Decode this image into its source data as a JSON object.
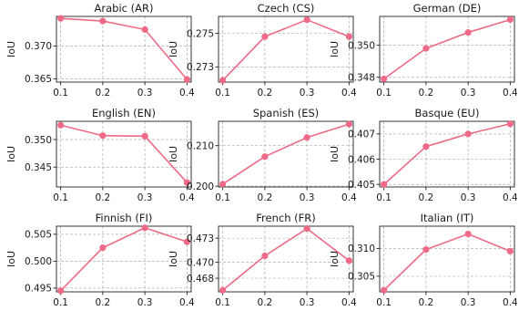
{
  "colors": {
    "series": "#ee6a86"
  },
  "chart_data": [
    {
      "type": "line",
      "title": "Arabic (AR)",
      "ylabel": "IoU",
      "x": [
        0.1,
        0.2,
        0.3,
        0.4
      ],
      "xticks": [
        "0.1",
        "0.2",
        "0.3",
        "0.4"
      ],
      "ylim": [
        0.3645,
        0.3745
      ],
      "yticks": [
        0.365,
        0.37
      ],
      "ytick_labels": [
        "0.365",
        "0.370"
      ],
      "series": [
        {
          "values": [
            0.3742,
            0.3738,
            0.3725,
            0.3649
          ]
        }
      ]
    },
    {
      "type": "line",
      "title": "Czech (CS)",
      "ylabel": "IoU",
      "x": [
        0.1,
        0.2,
        0.3,
        0.4
      ],
      "xticks": [
        "0.1",
        "0.2",
        "0.3",
        "0.4"
      ],
      "ylim": [
        0.2721,
        0.276
      ],
      "yticks": [
        0.273,
        0.275
      ],
      "ytick_labels": [
        "0.273",
        "0.275"
      ],
      "series": [
        {
          "values": [
            0.2722,
            0.2748,
            0.2758,
            0.2748
          ]
        }
      ]
    },
    {
      "type": "line",
      "title": "German (DE)",
      "ylabel": "IoU",
      "x": [
        0.1,
        0.2,
        0.3,
        0.4
      ],
      "xticks": [
        "0.1",
        "0.2",
        "0.3",
        "0.4"
      ],
      "ylim": [
        0.3477,
        0.3518
      ],
      "yticks": [
        0.348,
        0.35
      ],
      "ytick_labels": [
        "0.348",
        "0.350"
      ],
      "series": [
        {
          "values": [
            0.3479,
            0.3498,
            0.3508,
            0.3516
          ]
        }
      ]
    },
    {
      "type": "line",
      "title": "English (EN)",
      "ylabel": "IoU",
      "x": [
        0.1,
        0.2,
        0.3,
        0.4
      ],
      "xticks": [
        "0.1",
        "0.2",
        "0.3",
        "0.4"
      ],
      "ylim": [
        0.3414,
        0.3533
      ],
      "yticks": [
        0.345,
        0.35
      ],
      "ytick_labels": [
        "0.345",
        "0.350"
      ],
      "series": [
        {
          "values": [
            0.3526,
            0.3507,
            0.3506,
            0.3422
          ]
        }
      ]
    },
    {
      "type": "line",
      "title": "Spanish (ES)",
      "ylabel": "IoU",
      "x": [
        0.1,
        0.2,
        0.3,
        0.4
      ],
      "xticks": [
        "0.1",
        "0.2",
        "0.3",
        "0.4"
      ],
      "ylim": [
        0.1998,
        0.216
      ],
      "yticks": [
        0.2,
        0.21
      ],
      "ytick_labels": [
        "0.200",
        "0.210"
      ],
      "series": [
        {
          "values": [
            0.2005,
            0.2073,
            0.212,
            0.2153
          ]
        }
      ]
    },
    {
      "type": "line",
      "title": "Basque (EU)",
      "ylabel": "IoU",
      "x": [
        0.1,
        0.2,
        0.3,
        0.4
      ],
      "xticks": [
        "0.1",
        "0.2",
        "0.3",
        "0.4"
      ],
      "ylim": [
        0.4049,
        0.4075
      ],
      "yticks": [
        0.405,
        0.406,
        0.407
      ],
      "ytick_labels": [
        "0.405",
        "0.406",
        "0.407"
      ],
      "series": [
        {
          "values": [
            0.405,
            0.4065,
            0.407,
            0.4074
          ]
        }
      ]
    },
    {
      "type": "line",
      "title": "Finnish (FI)",
      "ylabel": "IoU",
      "x": [
        0.1,
        0.2,
        0.3,
        0.4
      ],
      "xticks": [
        "0.1",
        "0.2",
        "0.3",
        "0.4"
      ],
      "ylim": [
        0.4943,
        0.5065
      ],
      "yticks": [
        0.495,
        0.5,
        0.505
      ],
      "ytick_labels": [
        "0.495",
        "0.500",
        "0.505"
      ],
      "series": [
        {
          "values": [
            0.4945,
            0.5025,
            0.5062,
            0.5036
          ]
        }
      ]
    },
    {
      "type": "line",
      "title": "French (FR)",
      "ylabel": "IoU",
      "x": [
        0.1,
        0.2,
        0.3,
        0.4
      ],
      "xticks": [
        "0.1",
        "0.2",
        "0.3",
        "0.4"
      ],
      "ylim": [
        0.4663,
        0.4745
      ],
      "yticks": [
        0.468,
        0.47,
        0.473
      ],
      "ytick_labels": [
        "0.468",
        "0.470",
        "0.473"
      ],
      "series": [
        {
          "values": [
            0.4665,
            0.4708,
            0.4742,
            0.4702
          ]
        }
      ]
    },
    {
      "type": "line",
      "title": "Italian (IT)",
      "ylabel": "IoU",
      "x": [
        0.1,
        0.2,
        0.3,
        0.4
      ],
      "xticks": [
        "0.1",
        "0.2",
        "0.3",
        "0.4"
      ],
      "ylim": [
        0.3022,
        0.314
      ],
      "yticks": [
        0.305,
        0.31
      ],
      "ytick_labels": [
        "0.305",
        "0.310"
      ],
      "series": [
        {
          "values": [
            0.3025,
            0.3098,
            0.3126,
            0.3095
          ]
        }
      ]
    }
  ]
}
